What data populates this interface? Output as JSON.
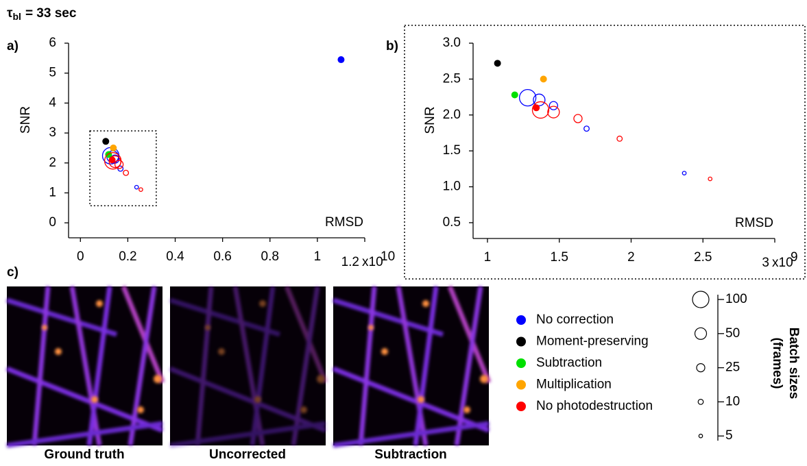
{
  "title": {
    "symbol": "τ",
    "subscript": "bl",
    "text": "= 33 sec"
  },
  "panel_labels": [
    "a)",
    "b)",
    "c)"
  ],
  "chart_data": [
    {
      "type": "scatter",
      "x_label": "RMSD",
      "y_label": "SNR",
      "xlim": [
        -0.05,
        1.2
      ],
      "ylim": [
        -0.5,
        6
      ],
      "xticks": [
        0,
        0.2,
        0.4,
        0.6,
        0.8,
        1,
        1.2
      ],
      "yticks": [
        0,
        1,
        2,
        3,
        4,
        5,
        6
      ],
      "x_multiplier": {
        "base": "x10",
        "exponent": "10"
      },
      "inset_box": {
        "xlim": [
          0.04,
          0.32
        ],
        "ylim": [
          0.57,
          3.07
        ]
      },
      "series": [
        {
          "color": "#0000ff",
          "x": [
            1.1,
            0.128,
            0.136,
            0.146,
            0.169,
            0.237
          ],
          "values": [
            5.45,
            2.24,
            2.21,
            2.13,
            1.81,
            1.19
          ],
          "sizes": [
            null,
            100,
            50,
            25,
            10,
            5
          ]
        },
        {
          "color": "#000000",
          "x": [
            0.107
          ],
          "values": [
            2.72
          ],
          "sizes": [
            null
          ]
        },
        {
          "color": "#00e000",
          "x": [
            0.119
          ],
          "values": [
            2.28
          ],
          "sizes": [
            null
          ]
        },
        {
          "color": "#ffa500",
          "x": [
            0.139
          ],
          "values": [
            2.5
          ],
          "sizes": [
            null
          ]
        },
        {
          "color": "#ff0000",
          "x": [
            0.134,
            0.137,
            0.146,
            0.163,
            0.192,
            0.255
          ],
          "values": [
            2.1,
            2.07,
            2.04,
            1.95,
            1.67,
            1.11
          ],
          "sizes": [
            null,
            100,
            50,
            25,
            10,
            5
          ]
        }
      ]
    },
    {
      "type": "scatter",
      "x_label": "RMSD",
      "y_label": "SNR",
      "xlim": [
        0.9,
        3
      ],
      "ylim": [
        0.28,
        3
      ],
      "xticks": [
        1,
        1.5,
        2,
        2.5,
        3
      ],
      "yticks": [
        {
          "value": 0.5,
          "label": "0.5"
        },
        {
          "value": 1,
          "label": "1.0"
        },
        {
          "value": 1.5,
          "label": "1.5"
        },
        {
          "value": 2,
          "label": "2.0"
        },
        {
          "value": 2.5,
          "label": "2.5"
        },
        {
          "value": 3,
          "label": "3.0"
        }
      ],
      "x_multiplier": {
        "base": "x10",
        "exponent": "9"
      },
      "series": [
        {
          "name": "No correction",
          "color": "#0000ff",
          "x": [
            1.28,
            1.36,
            1.46,
            1.69,
            2.37
          ],
          "values": [
            2.24,
            2.21,
            2.13,
            1.81,
            1.19
          ],
          "sizes": [
            100,
            50,
            25,
            10,
            5
          ]
        },
        {
          "name": "Moment-preserving",
          "color": "#000000",
          "x": [
            1.07
          ],
          "values": [
            2.72
          ],
          "sizes": [
            null
          ]
        },
        {
          "name": "Subtraction",
          "color": "#00e000",
          "x": [
            1.19
          ],
          "values": [
            2.28
          ],
          "sizes": [
            null
          ]
        },
        {
          "name": "Multiplication",
          "color": "#ffa500",
          "x": [
            1.39
          ],
          "values": [
            2.5
          ],
          "sizes": [
            null
          ]
        },
        {
          "name": "No photodestruction",
          "color": "#ff0000",
          "x": [
            1.34,
            1.37,
            1.46,
            1.63,
            1.92,
            2.55
          ],
          "values": [
            2.1,
            2.07,
            2.04,
            1.95,
            1.67,
            1.11
          ],
          "sizes": [
            null,
            100,
            50,
            25,
            10,
            5
          ]
        }
      ]
    }
  ],
  "images": [
    "Ground truth",
    "Uncorrected",
    "Subtraction"
  ],
  "size_legend": {
    "title": "Batch sizes",
    "subtitle": "(frames)",
    "sizes": [
      100,
      50,
      25,
      10,
      5
    ]
  }
}
